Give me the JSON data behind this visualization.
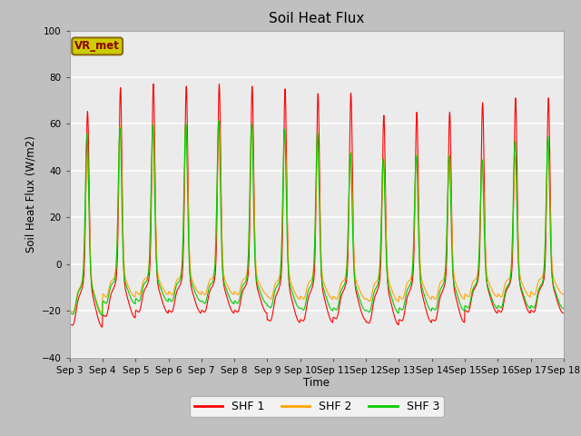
{
  "title": "Soil Heat Flux",
  "ylabel": "Soil Heat Flux (W/m2)",
  "xlabel": "Time",
  "ylim": [
    -40,
    100
  ],
  "yticks": [
    -40,
    -20,
    0,
    20,
    40,
    60,
    80,
    100
  ],
  "colors": {
    "SHF 1": "#ff0000",
    "SHF 2": "#ffa500",
    "SHF 3": "#00cc00"
  },
  "legend_labels": [
    "SHF 1",
    "SHF 2",
    "SHF 3"
  ],
  "annotation_text": "VR_met",
  "annotation_color": "#cccc00",
  "annotation_edge_color": "#8b6914",
  "fig_bg_color": "#c0c0c0",
  "plot_bg_color": "#ebebeb",
  "grid_color": "#ffffff",
  "n_days": 15,
  "start_day": 3,
  "points_per_day": 96,
  "shf1_day_peaks": [
    73,
    82,
    83,
    82,
    83,
    82,
    82,
    80,
    80,
    71,
    72,
    72,
    75,
    77,
    77
  ],
  "shf1_night_mins": [
    -27,
    -23,
    -21,
    -21,
    -21,
    -21,
    -25,
    -25,
    -24,
    -26,
    -25,
    -25,
    -21,
    -21,
    -21
  ],
  "shf2_day_peaks": [
    52,
    63,
    64,
    63,
    65,
    62,
    60,
    55,
    52,
    50,
    51,
    51,
    48,
    50,
    52
  ],
  "shf2_night_mins": [
    -21,
    -14,
    -13,
    -13,
    -13,
    -13,
    -15,
    -15,
    -15,
    -16,
    -15,
    -15,
    -14,
    -14,
    -13
  ],
  "shf3_day_peaks": [
    62,
    63,
    64,
    65,
    66,
    65,
    63,
    62,
    53,
    51,
    52,
    52,
    50,
    58,
    60
  ],
  "shf3_night_mins": [
    -22,
    -17,
    -16,
    -16,
    -17,
    -17,
    -19,
    -20,
    -20,
    -21,
    -20,
    -20,
    -19,
    -19,
    -19
  ]
}
